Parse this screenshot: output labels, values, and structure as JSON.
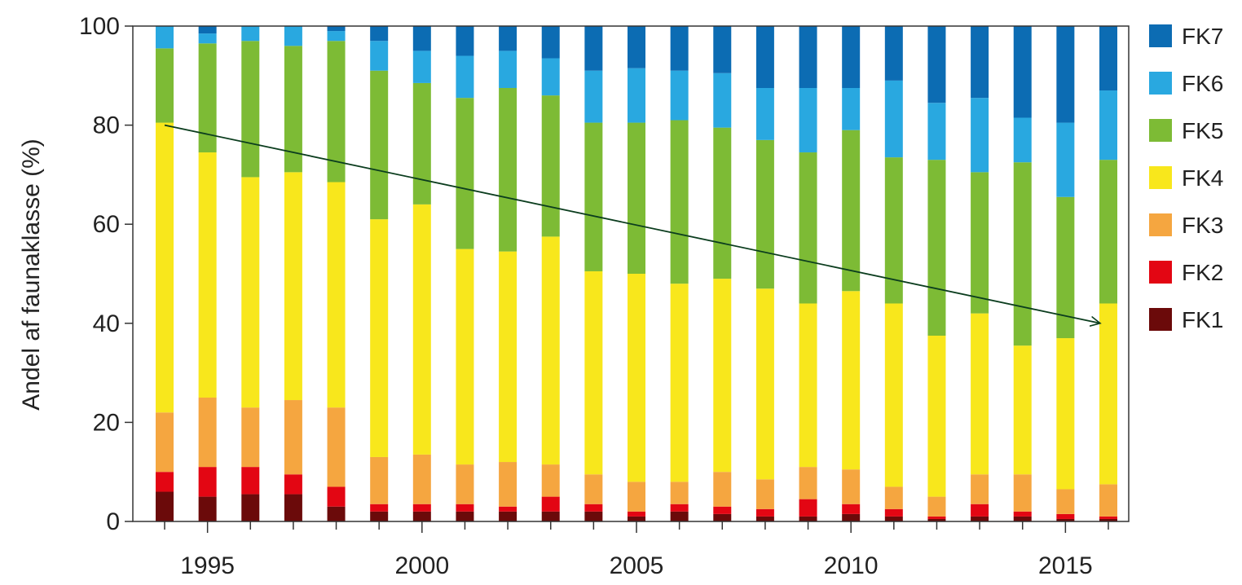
{
  "chart_data": {
    "type": "bar",
    "stacked": true,
    "title": "",
    "xlabel": "",
    "ylabel": "Andel af faunaklasse (%)",
    "ylim": [
      0,
      100
    ],
    "yticks": [
      "0",
      "20",
      "40",
      "60",
      "80",
      "100"
    ],
    "xtick_labels": [
      "1995",
      "2000",
      "2005",
      "2010",
      "2015"
    ],
    "categories": [
      "1994",
      "1995",
      "1996",
      "1997",
      "1998",
      "1999",
      "2000",
      "2001",
      "2002",
      "2003",
      "2004",
      "2005",
      "2006",
      "2007",
      "2008",
      "2009",
      "2010",
      "2011",
      "2012",
      "2013",
      "2014",
      "2015",
      "2016"
    ],
    "series": [
      {
        "name": "FK1",
        "color": "#6b0a0a",
        "values": [
          6,
          5,
          5.5,
          5.5,
          3,
          2,
          2,
          2,
          2,
          2,
          2,
          1,
          2,
          1.5,
          1,
          1,
          1.5,
          1,
          0.5,
          1,
          1,
          0.5,
          0.5
        ]
      },
      {
        "name": "FK2",
        "color": "#e30613",
        "values": [
          4,
          6,
          5.5,
          4,
          4,
          1.5,
          1.5,
          1.5,
          1,
          3,
          1.5,
          1,
          1.5,
          1.5,
          1.5,
          3.5,
          2,
          1.5,
          0.5,
          2.5,
          1,
          1,
          0.5
        ]
      },
      {
        "name": "FK3",
        "color": "#f5a640",
        "values": [
          12,
          14,
          12,
          15,
          16,
          9.5,
          10,
          8,
          9,
          6.5,
          6,
          6,
          4.5,
          7,
          6,
          6.5,
          7,
          4.5,
          4,
          6,
          7.5,
          5,
          6.5
        ]
      },
      {
        "name": "FK4",
        "color": "#f8e71c",
        "values": [
          58.5,
          49.5,
          46.5,
          46,
          45.5,
          48,
          50.5,
          43.5,
          42.5,
          46,
          41,
          42,
          40,
          39,
          38.5,
          33,
          36,
          37,
          32.5,
          32.5,
          26,
          30.5,
          36.5
        ]
      },
      {
        "name": "FK5",
        "color": "#7dbb35",
        "values": [
          15,
          22,
          27.5,
          25.5,
          28.5,
          30,
          24.5,
          30.5,
          33,
          28.5,
          30,
          30.5,
          33,
          30.5,
          30,
          30.5,
          32.5,
          29.5,
          35.5,
          28.5,
          37,
          28.5,
          29
        ]
      },
      {
        "name": "FK6",
        "color": "#29a8e0",
        "values": [
          4.5,
          2,
          3,
          4,
          2,
          6,
          6.5,
          8.5,
          7.5,
          7.5,
          10.5,
          11,
          10,
          11,
          10.5,
          13,
          8.5,
          15.5,
          11.5,
          15,
          9,
          15,
          14
        ]
      },
      {
        "name": "FK7",
        "color": "#0c6cb3",
        "values": [
          0,
          1.5,
          0,
          0,
          1,
          3,
          5,
          6,
          5,
          6.5,
          9,
          8.5,
          9,
          9.5,
          12.5,
          12.5,
          12.5,
          11,
          15.5,
          14.5,
          18.5,
          19.5,
          13
        ]
      }
    ],
    "trend_arrow": {
      "from": [
        1994,
        80
      ],
      "to": [
        2016,
        40
      ],
      "color": "#0b3d1e"
    },
    "legend_position": "right",
    "grid": false
  }
}
